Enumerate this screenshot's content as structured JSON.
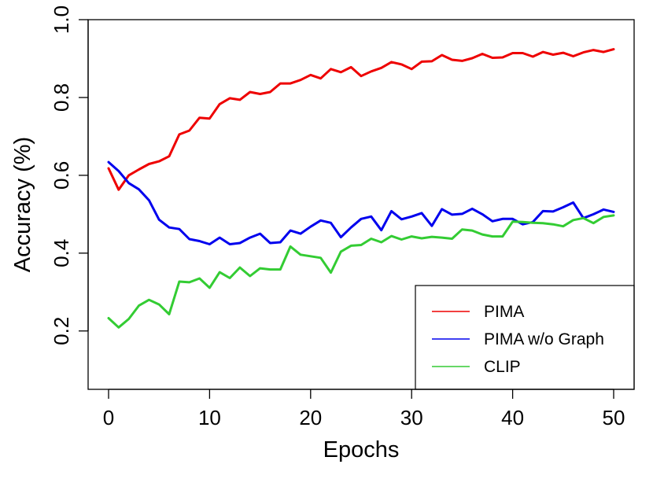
{
  "chart_data": {
    "type": "line",
    "xlabel": "Epochs",
    "ylabel": "Accuracy (%)",
    "xlim": [
      0,
      50
    ],
    "ylim": [
      0.05,
      1.0
    ],
    "x_ticks": [
      0,
      10,
      20,
      30,
      40,
      50
    ],
    "y_ticks": [
      0.2,
      0.4,
      0.6,
      0.8,
      1.0
    ],
    "x_tick_labels": [
      "0",
      "10",
      "20",
      "30",
      "40",
      "50"
    ],
    "y_tick_labels": [
      "0.2",
      "0.4",
      "0.6",
      "0.8",
      "1.0"
    ],
    "grid": false,
    "legend_position": "bottom-right",
    "x": [
      0,
      1,
      2,
      3,
      4,
      5,
      6,
      7,
      8,
      9,
      10,
      11,
      12,
      13,
      14,
      15,
      16,
      17,
      18,
      19,
      20,
      21,
      22,
      23,
      24,
      25,
      26,
      27,
      28,
      29,
      30,
      31,
      32,
      33,
      34,
      35,
      36,
      37,
      38,
      39,
      40,
      41,
      42,
      43,
      44,
      45,
      46,
      47,
      48,
      49,
      50
    ],
    "series": [
      {
        "name": "PIMA",
        "color": "#ee0000",
        "values": [
          0.618,
          0.563,
          0.6,
          0.615,
          0.629,
          0.636,
          0.649,
          0.705,
          0.715,
          0.748,
          0.746,
          0.783,
          0.798,
          0.794,
          0.814,
          0.809,
          0.814,
          0.836,
          0.836,
          0.845,
          0.858,
          0.849,
          0.873,
          0.865,
          0.878,
          0.855,
          0.867,
          0.876,
          0.891,
          0.885,
          0.873,
          0.892,
          0.893,
          0.909,
          0.897,
          0.894,
          0.901,
          0.912,
          0.902,
          0.903,
          0.914,
          0.914,
          0.905,
          0.917,
          0.91,
          0.915,
          0.906,
          0.916,
          0.922,
          0.917,
          0.924
        ]
      },
      {
        "name": "PIMA w/o Graph",
        "color": "#0000ee",
        "values": [
          0.634,
          0.611,
          0.58,
          0.564,
          0.536,
          0.486,
          0.466,
          0.462,
          0.436,
          0.431,
          0.423,
          0.44,
          0.423,
          0.426,
          0.44,
          0.45,
          0.426,
          0.428,
          0.458,
          0.45,
          0.468,
          0.484,
          0.478,
          0.441,
          0.466,
          0.488,
          0.494,
          0.459,
          0.508,
          0.487,
          0.494,
          0.503,
          0.47,
          0.513,
          0.499,
          0.501,
          0.514,
          0.5,
          0.482,
          0.488,
          0.488,
          0.474,
          0.48,
          0.508,
          0.507,
          0.518,
          0.53,
          0.49,
          0.5,
          0.512,
          0.506
        ]
      },
      {
        "name": "CLIP",
        "color": "#33cc33",
        "values": [
          0.233,
          0.209,
          0.231,
          0.265,
          0.28,
          0.268,
          0.243,
          0.327,
          0.325,
          0.335,
          0.311,
          0.351,
          0.336,
          0.363,
          0.341,
          0.361,
          0.358,
          0.358,
          0.417,
          0.396,
          0.392,
          0.388,
          0.35,
          0.404,
          0.419,
          0.421,
          0.437,
          0.428,
          0.444,
          0.435,
          0.443,
          0.438,
          0.442,
          0.44,
          0.437,
          0.461,
          0.458,
          0.448,
          0.443,
          0.443,
          0.481,
          0.48,
          0.478,
          0.477,
          0.474,
          0.469,
          0.485,
          0.49,
          0.477,
          0.493,
          0.497
        ]
      }
    ]
  }
}
